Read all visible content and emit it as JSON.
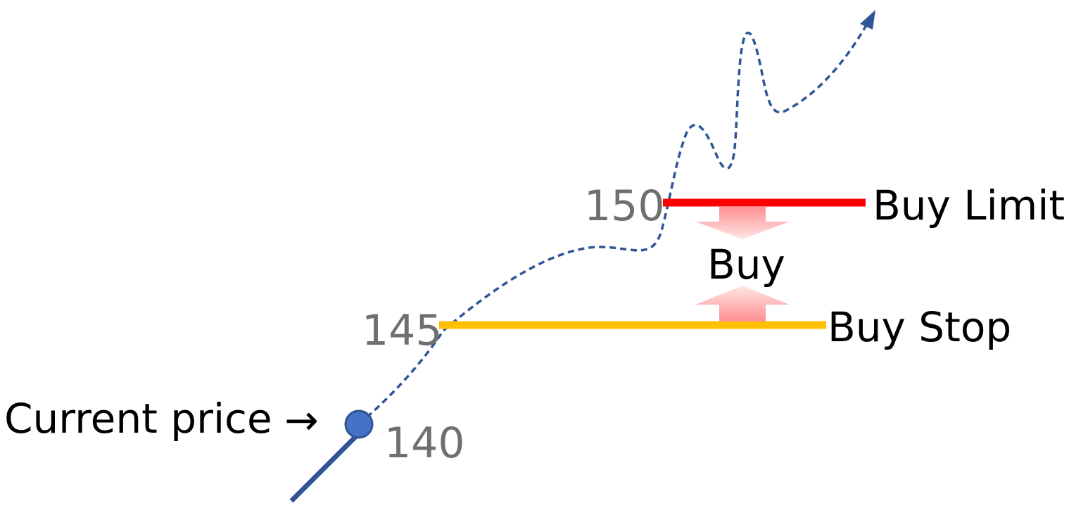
{
  "labels": {
    "current_price": "Current price",
    "arrow": "→",
    "buy": "Buy",
    "buy_limit": "Buy Limit",
    "buy_stop": "Buy Stop"
  },
  "levels": {
    "current": "140",
    "stop": "145",
    "limit": "150"
  },
  "colors": {
    "price_path": "#2f5597",
    "current_dot_fill": "#4472c4",
    "buy_limit_line": "#ff0000",
    "buy_stop_line": "#ffc000",
    "buy_arrows": "#ff9999",
    "level_numbers": "#6f6f6f"
  }
}
